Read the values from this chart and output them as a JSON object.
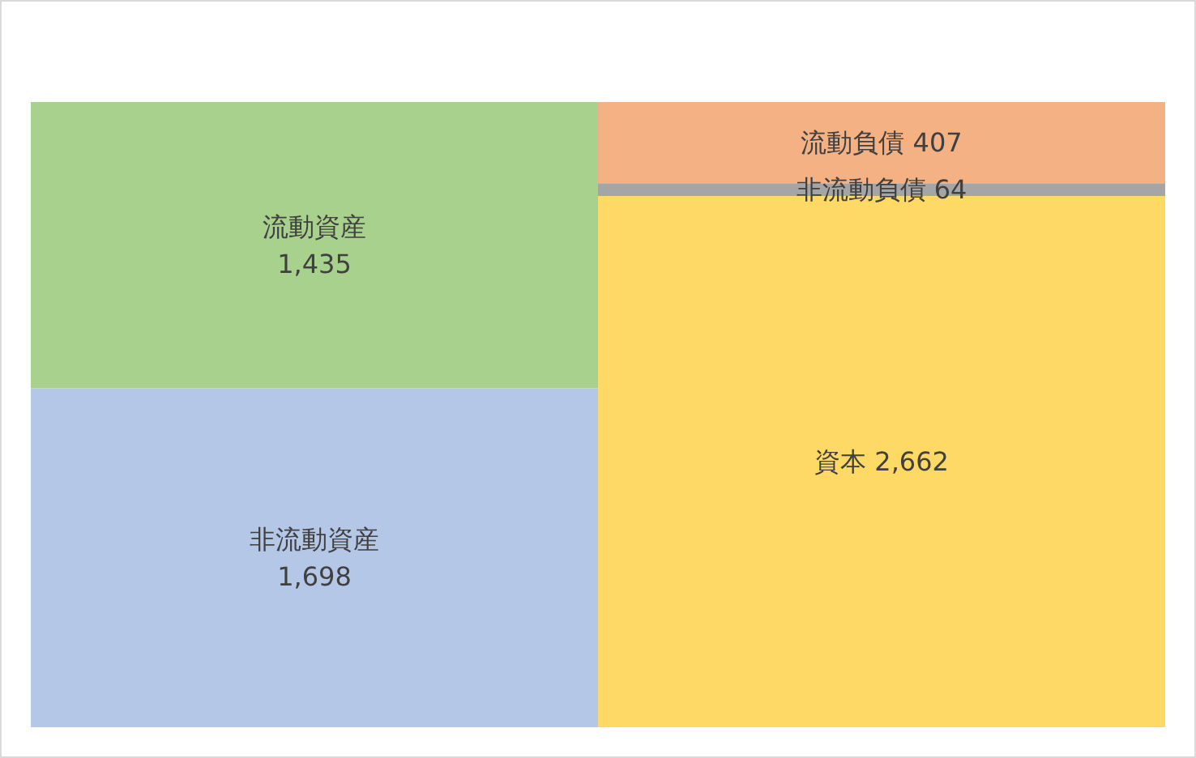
{
  "chart_data": {
    "type": "bar",
    "stacked": true,
    "categories": [
      null,
      null
    ],
    "tick_labels": false,
    "legend": false,
    "grid": false,
    "series": [
      {
        "name": "非流動資産",
        "color": "#b4c7e7",
        "values": [
          1698,
          null
        ],
        "value_labels": [
          "1,698",
          null
        ]
      },
      {
        "name": "流動資産",
        "color": "#a9d18e",
        "values": [
          1435,
          null
        ],
        "value_labels": [
          "1,435",
          null
        ]
      },
      {
        "name": "資本",
        "color": "#ffd966",
        "values": [
          null,
          2662
        ],
        "value_labels": [
          null,
          "2,662"
        ]
      },
      {
        "name": "非流動負債",
        "color": "#a5a5a5",
        "values": [
          null,
          64
        ],
        "value_labels": [
          null,
          "64"
        ]
      },
      {
        "name": "流動負債",
        "color": "#f4b183",
        "values": [
          null,
          407
        ],
        "value_labels": [
          null,
          "407"
        ]
      }
    ]
  }
}
